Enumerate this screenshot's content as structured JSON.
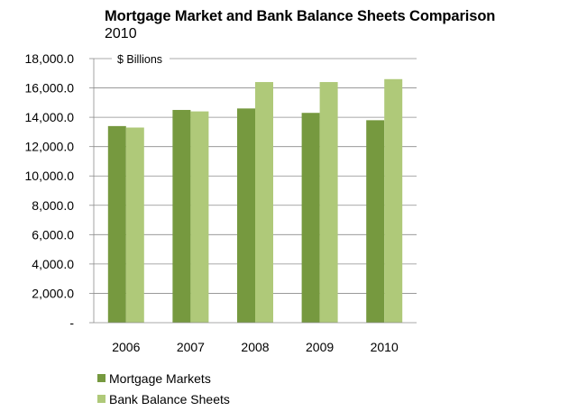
{
  "chart_data": {
    "type": "bar",
    "title": "Mortgage Market and Bank Balance Sheets Comparison",
    "subtitle": "2010",
    "ylabel": "$ Billions",
    "xlabel": "",
    "categories": [
      "2006",
      "2007",
      "2008",
      "2009",
      "2010"
    ],
    "series": [
      {
        "name": "Mortgage Markets",
        "color": "#76993f",
        "values": [
          13400,
          14500,
          14600,
          14300,
          13800
        ]
      },
      {
        "name": "Bank Balance Sheets",
        "color": "#afc979",
        "values": [
          13300,
          14400,
          16400,
          16400,
          16600
        ]
      }
    ],
    "ylim": [
      0,
      18000
    ],
    "yticks": [
      "-",
      "2,000.0",
      "4,000.0",
      "6,000.0",
      "8,000.0",
      "10,000.0",
      "12,000.0",
      "14,000.0",
      "16,000.0",
      "18,000.0"
    ],
    "grid": true,
    "legend_position": "bottom-left"
  }
}
